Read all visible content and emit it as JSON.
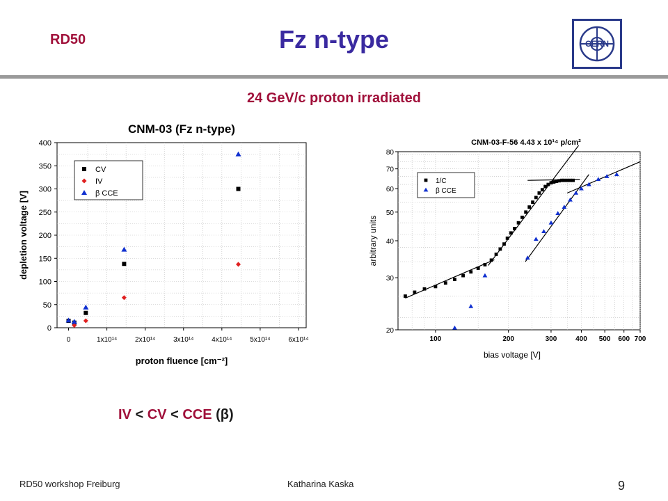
{
  "header": {
    "brand": "RD50",
    "title": "Fz n-type",
    "logo_text": "CERN",
    "subtitle": "24 GeV/c proton irradiated"
  },
  "colors": {
    "accent": "#a0103a",
    "title": "#3a2aa0",
    "cv": "#000000",
    "iv": "#e02020",
    "cce": "#1030d0"
  },
  "summary": {
    "iv": "IV",
    "lt1": "<",
    "cv": "CV",
    "lt2": "<",
    "cce": "CCE",
    "beta": "(β)"
  },
  "footer": {
    "left": "RD50 workshop Freiburg",
    "center": "Katharina Kaska",
    "page": "9"
  },
  "chart_data": [
    {
      "type": "scatter",
      "title": "CNM-03 (Fz n-type)",
      "xlabel": "proton fluence [cm⁻²]",
      "ylabel": "depletion voltage [V]",
      "xlim": [
        -30000000000000.0,
        620000000000000.0
      ],
      "ylim": [
        0,
        400
      ],
      "grid": true,
      "legend": "top-left",
      "x_ticks": [
        {
          "v": 0,
          "label": "0"
        },
        {
          "v": 100000000000000.0,
          "label": "1x10¹⁴"
        },
        {
          "v": 200000000000000.0,
          "label": "2x10¹⁴"
        },
        {
          "v": 300000000000000.0,
          "label": "3x10¹⁴"
        },
        {
          "v": 400000000000000.0,
          "label": "4x10¹⁴"
        },
        {
          "v": 500000000000000.0,
          "label": "5x10¹⁴"
        },
        {
          "v": 600000000000000.0,
          "label": "6x10¹⁴"
        }
      ],
      "y_ticks": [
        0,
        50,
        100,
        150,
        200,
        250,
        300,
        350,
        400
      ],
      "series": [
        {
          "name": "CV",
          "marker": "square",
          "color": "#000000",
          "points": [
            [
              0.0,
              15
            ],
            [
              15000000000000.0,
              11
            ],
            [
              45000000000000.0,
              32
            ],
            [
              145000000000000.0,
              138
            ],
            [
              443000000000000.0,
              300
            ]
          ]
        },
        {
          "name": "IV",
          "marker": "diamond",
          "color": "#e02020",
          "points": [
            [
              15000000000000.0,
              5
            ],
            [
              45000000000000.0,
              15
            ],
            [
              145000000000000.0,
              65
            ],
            [
              443000000000000.0,
              137
            ]
          ]
        },
        {
          "name": "β CCE",
          "marker": "triangle",
          "color": "#1030d0",
          "points": [
            [
              0.0,
              16
            ],
            [
              15000000000000.0,
              13
            ],
            [
              45000000000000.0,
              44
            ],
            [
              145000000000000.0,
              169
            ],
            [
              443000000000000.0,
              375
            ]
          ]
        }
      ]
    },
    {
      "type": "scatter",
      "title": "CNM-03-F-56  4.43 x 10¹⁴ p/cm²",
      "xlabel": "bias voltage [V]",
      "ylabel": "arbitrary units",
      "x_scale": "log",
      "y_scale": "log",
      "xlim": [
        70,
        700
      ],
      "ylim": [
        20,
        80
      ],
      "grid": true,
      "legend": "top-left",
      "x_ticks": [
        100,
        200,
        300,
        400,
        500,
        600,
        700
      ],
      "y_ticks": [
        20,
        30,
        40,
        50,
        60,
        70,
        80
      ],
      "series": [
        {
          "name": "1/C",
          "marker": "square",
          "color": "#000000",
          "points": [
            [
              75,
              26
            ],
            [
              82,
              26.8
            ],
            [
              90,
              27.5
            ],
            [
              100,
              28
            ],
            [
              110,
              28.8
            ],
            [
              120,
              29.6
            ],
            [
              130,
              30.5
            ],
            [
              140,
              31.4
            ],
            [
              150,
              32.3
            ],
            [
              160,
              33.2
            ],
            [
              170,
              34.4
            ],
            [
              178,
              36
            ],
            [
              185,
              37.5
            ],
            [
              192,
              39
            ],
            [
              198,
              40.8
            ],
            [
              205,
              42.5
            ],
            [
              212,
              44
            ],
            [
              220,
              46
            ],
            [
              228,
              48
            ],
            [
              236,
              50
            ],
            [
              244,
              52
            ],
            [
              252,
              54
            ],
            [
              260,
              56
            ],
            [
              268,
              58
            ],
            [
              276,
              59.5
            ],
            [
              284,
              61
            ],
            [
              292,
              62
            ],
            [
              300,
              62.8
            ],
            [
              308,
              63.2
            ],
            [
              316,
              63.5
            ],
            [
              324,
              63.8
            ],
            [
              332,
              64
            ],
            [
              340,
              64
            ],
            [
              350,
              64
            ],
            [
              360,
              64
            ],
            [
              370,
              64
            ]
          ]
        },
        {
          "name": "β CCE",
          "marker": "triangle",
          "color": "#1030d0",
          "points": [
            [
              120,
              20.3
            ],
            [
              140,
              24
            ],
            [
              160,
              30.5
            ],
            [
              240,
              35
            ],
            [
              260,
              40.5
            ],
            [
              280,
              43
            ],
            [
              300,
              46
            ],
            [
              320,
              49.5
            ],
            [
              340,
              52
            ],
            [
              360,
              55
            ],
            [
              380,
              58
            ],
            [
              400,
              60
            ],
            [
              430,
              62
            ],
            [
              470,
              64.5
            ],
            [
              510,
              66
            ],
            [
              560,
              67
            ]
          ]
        }
      ]
    }
  ]
}
